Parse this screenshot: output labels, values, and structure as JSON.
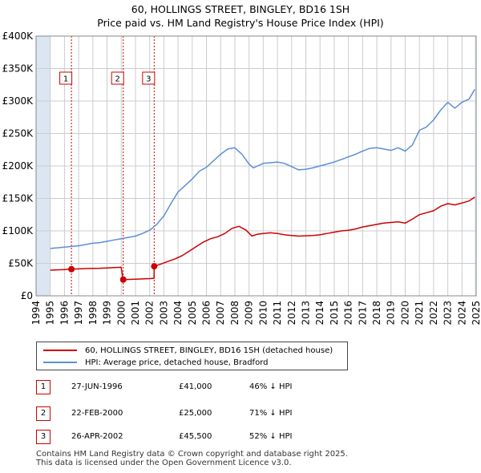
{
  "title_line1": "60, HOLLINGS STREET, BINGLEY, BD16 1SH",
  "title_line2": "Price paid vs. HM Land Registry's House Price Index (HPI)",
  "colors": {
    "price_line": "#cc0000",
    "hpi_line": "#5b8fd6",
    "shade": "#dce6f2",
    "grid": "#cccccc",
    "marker": "#cc0000"
  },
  "legend": {
    "price_label": "60, HOLLINGS STREET, BINGLEY, BD16 1SH (detached house)",
    "hpi_label": "HPI: Average price, detached house, Bradford"
  },
  "transactions": [
    {
      "num": "1",
      "date": "27-JUN-1996",
      "price": "£41,000",
      "hpi": "46% ↓ HPI"
    },
    {
      "num": "2",
      "date": "22-FEB-2000",
      "price": "£25,000",
      "hpi": "71% ↓ HPI"
    },
    {
      "num": "3",
      "date": "26-APR-2002",
      "price": "£45,500",
      "hpi": "52% ↓ HPI"
    }
  ],
  "footer": {
    "line1": "Contains HM Land Registry data © Crown copyright and database right 2025.",
    "line2": "This data is licensed under the Open Government Licence v3.0."
  },
  "chart_data": {
    "type": "line",
    "title": "60, HOLLINGS STREET, BINGLEY, BD16 1SH — Price paid vs. HM Land Registry's House Price Index (HPI)",
    "xlabel": "",
    "ylabel": "",
    "xlim": [
      1994,
      2025
    ],
    "ylim": [
      0,
      400000
    ],
    "y_ticks": [
      0,
      50000,
      100000,
      150000,
      200000,
      250000,
      300000,
      350000,
      400000
    ],
    "y_tick_labels": [
      "£0",
      "£50K",
      "£100K",
      "£150K",
      "£200K",
      "£250K",
      "£300K",
      "£350K",
      "£400K"
    ],
    "x_ticks": [
      1994,
      1995,
      1996,
      1997,
      1998,
      1999,
      2000,
      2001,
      2002,
      2003,
      2004,
      2005,
      2006,
      2007,
      2008,
      2009,
      2010,
      2011,
      2012,
      2013,
      2014,
      2015,
      2016,
      2017,
      2018,
      2019,
      2020,
      2021,
      2022,
      2023,
      2024,
      2025
    ],
    "shaded_ranges": [
      [
        1994,
        1995
      ],
      [
        2024.9,
        2025
      ]
    ],
    "sale_markers": [
      {
        "label": "1",
        "x": 1996.49,
        "y": 41000
      },
      {
        "label": "2",
        "x": 2000.14,
        "y": 25000
      },
      {
        "label": "3",
        "x": 2002.32,
        "y": 45500
      }
    ],
    "series": [
      {
        "name": "60, HOLLINGS STREET, BINGLEY, BD16 1SH (detached house)",
        "x": [
          1995.0,
          1995.5,
          1996.0,
          1996.49,
          1997.0,
          1997.5,
          1998.0,
          1998.5,
          1999.0,
          1999.5,
          1999.99,
          2000.14,
          2000.6,
          2001.0,
          2001.5,
          2002.0,
          2002.31,
          2002.32,
          2002.8,
          2003.3,
          2003.8,
          2004.3,
          2004.8,
          2005.3,
          2005.8,
          2006.3,
          2006.8,
          2007.3,
          2007.8,
          2008.3,
          2008.8,
          2009.2,
          2009.6,
          2010.0,
          2010.5,
          2011.0,
          2011.5,
          2012.0,
          2012.5,
          2013.0,
          2013.5,
          2014.0,
          2014.5,
          2015.0,
          2015.5,
          2016.0,
          2016.5,
          2017.0,
          2017.5,
          2018.0,
          2018.5,
          2019.0,
          2019.5,
          2020.0,
          2020.5,
          2021.0,
          2021.5,
          2022.0,
          2022.5,
          2023.0,
          2023.5,
          2024.0,
          2024.5,
          2024.9
        ],
        "values": [
          39500,
          40000,
          40500,
          41000,
          41500,
          42000,
          42200,
          42500,
          43000,
          43500,
          44000,
          25000,
          25300,
          25600,
          26000,
          26500,
          27000,
          45500,
          49000,
          53000,
          57000,
          62000,
          69000,
          76000,
          83000,
          88000,
          91000,
          96000,
          104000,
          107000,
          101000,
          92000,
          95000,
          96000,
          97000,
          96000,
          94000,
          93000,
          92000,
          92500,
          93000,
          94000,
          96000,
          98000,
          100000,
          101000,
          103000,
          106000,
          108000,
          110000,
          112000,
          113000,
          114000,
          112000,
          118000,
          125000,
          128000,
          131000,
          138000,
          142000,
          140000,
          143000,
          146000,
          152000
        ]
      },
      {
        "name": "HPI: Average price, detached house, Bradford",
        "x": [
          1995.0,
          1995.5,
          1996.0,
          1996.5,
          1997.0,
          1997.5,
          1998.0,
          1998.5,
          1999.0,
          1999.5,
          2000.0,
          2000.5,
          2001.0,
          2001.5,
          2002.0,
          2002.5,
          2003.0,
          2003.5,
          2004.0,
          2004.5,
          2005.0,
          2005.5,
          2006.0,
          2006.5,
          2007.0,
          2007.5,
          2008.0,
          2008.5,
          2009.0,
          2009.3,
          2009.6,
          2010.0,
          2010.5,
          2011.0,
          2011.5,
          2012.0,
          2012.5,
          2013.0,
          2013.5,
          2014.0,
          2014.5,
          2015.0,
          2015.5,
          2016.0,
          2016.5,
          2017.0,
          2017.5,
          2018.0,
          2018.5,
          2019.0,
          2019.5,
          2020.0,
          2020.5,
          2021.0,
          2021.5,
          2022.0,
          2022.5,
          2023.0,
          2023.5,
          2024.0,
          2024.5,
          2024.9
        ],
        "values": [
          73000,
          74000,
          75000,
          76000,
          77000,
          79000,
          81000,
          82000,
          84000,
          86000,
          88000,
          90000,
          92000,
          96000,
          101000,
          110000,
          123000,
          142000,
          160000,
          170000,
          180000,
          192000,
          198000,
          208000,
          218000,
          226000,
          228000,
          218000,
          203000,
          197000,
          200000,
          204000,
          205000,
          206000,
          204000,
          199000,
          194000,
          195000,
          197000,
          200000,
          203000,
          206000,
          210000,
          214000,
          218000,
          223000,
          227000,
          228000,
          226000,
          224000,
          228000,
          223000,
          232000,
          255000,
          260000,
          271000,
          286000,
          298000,
          289000,
          298000,
          303000,
          318000
        ]
      }
    ]
  }
}
